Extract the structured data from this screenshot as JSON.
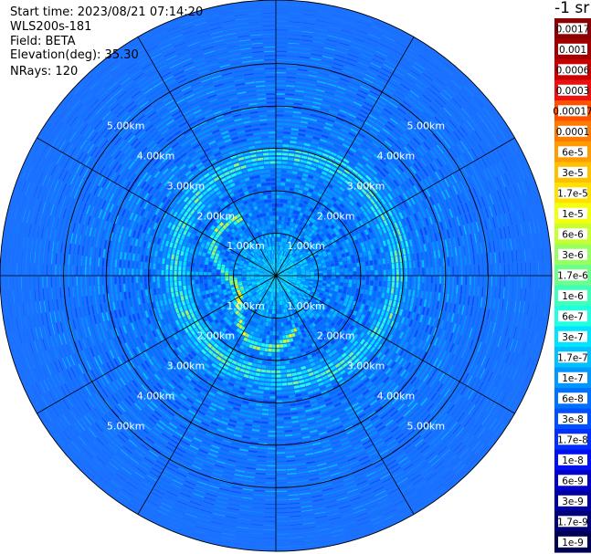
{
  "header": {
    "start_time": "Start time: 2023/08/21 07:14:20",
    "instrument": "WLS200s-181",
    "field": "Field: BETA",
    "elevation": "Elevation(deg): 35.30",
    "nrays": "NRays: 120"
  },
  "colorbar": {
    "title": "-1 sr",
    "labels": [
      "0.0017",
      "0.001",
      "0.0006",
      "0.0003",
      "0.00017",
      "0.0001",
      "6e-5",
      "3e-5",
      "1.7e-5",
      "1e-5",
      "6e-6",
      "3e-6",
      "1.7e-6",
      "1e-6",
      "6e-7",
      "3e-7",
      "1.7e-7",
      "1e-7",
      "6e-8",
      "3e-8",
      "1.7e-8",
      "1e-8",
      "6e-9",
      "3e-9",
      "1.7e-9",
      "1e-9"
    ],
    "colors": [
      "#8b0000",
      "#a00000",
      "#c80000",
      "#ee1010",
      "#ff5000",
      "#ff7a00",
      "#ff9a00",
      "#ffc000",
      "#ffe000",
      "#f4ff10",
      "#c8ff30",
      "#98ff60",
      "#6cff8c",
      "#40ffb8",
      "#20ffe0",
      "#00e4ff",
      "#00c0ff",
      "#0098ff",
      "#0070ff",
      "#0050ff",
      "#0030ff",
      "#0010f0",
      "#0000c8",
      "#0000a0",
      "#000078",
      "#000050"
    ]
  },
  "chart_data": {
    "type": "heatmap",
    "projection": "polar (PPI scan)",
    "field": "BETA",
    "units": "-1 sr",
    "n_rays": 120,
    "elevation_deg": 35.3,
    "max_range_km": 6.5,
    "range_rings_km": [
      1,
      2,
      3,
      4,
      5
    ],
    "range_ring_labels": [
      "1.00km",
      "2.00km",
      "3.00km",
      "4.00km",
      "5.00km"
    ],
    "outer_ring_labels": [
      "5.00km",
      "5.00km",
      "5.00km"
    ],
    "radial_lines_deg": [
      0,
      30,
      60,
      90,
      120,
      150,
      180,
      210,
      240,
      270,
      300,
      330
    ],
    "color_scale": "log",
    "value_range": [
      1e-09,
      0.0017
    ],
    "background_level": "approx. 6e-8 to 1.7e-7",
    "near_field_level": "approx. 1e-7 to 3e-7 within 1 km",
    "features": [
      {
        "name": "inner echo arc",
        "range_km": [
          1.0,
          2.0
        ],
        "azimuth_deg": [
          160,
          330
        ],
        "level": "approx. 1e-5 to 3e-5"
      },
      {
        "name": "outer echo ring",
        "range_km": [
          2.3,
          3.3
        ],
        "azimuth_deg": [
          0,
          360
        ],
        "level": "approx. 1e-6 to 1.7e-6"
      }
    ]
  }
}
